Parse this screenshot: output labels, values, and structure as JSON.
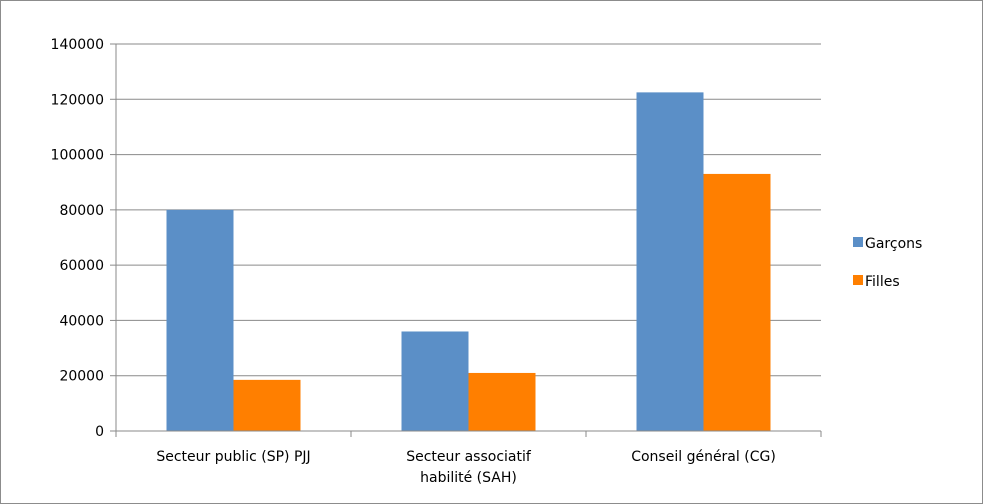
{
  "chart_data": {
    "type": "bar",
    "title": "",
    "xlabel": "",
    "ylabel": "",
    "categories": [
      [
        "Secteur public (SP) PJJ"
      ],
      [
        "Secteur associatif",
        "habilité (SAH)"
      ],
      [
        "Conseil général (CG)"
      ]
    ],
    "series": [
      {
        "name": "Garçons",
        "color": "#5b8fc7",
        "values": [
          80000,
          36000,
          122500
        ]
      },
      {
        "name": "Filles",
        "color": "#ff7f00",
        "values": [
          18500,
          21000,
          93000
        ]
      }
    ],
    "ylim": [
      0,
      140000
    ],
    "yticks": [
      0,
      20000,
      40000,
      60000,
      80000,
      100000,
      120000,
      140000
    ],
    "grid": true,
    "legend_position": "right"
  }
}
